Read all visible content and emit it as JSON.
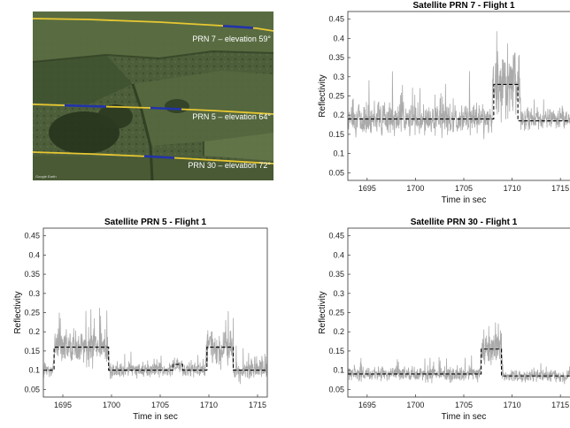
{
  "map_panel": {
    "labels": [
      "PRN 7 – elevation 59°",
      "PRN 5 – elevation 64°",
      "PRN 30 – elevation 72°"
    ],
    "credit": "Google Earth",
    "colors": {
      "track": "#e8c832",
      "segment": "#2233aa",
      "background": "#4a5a38"
    }
  },
  "chart_data": [
    {
      "type": "line",
      "title": "Satellite PRN 7 - Flight 1",
      "xlabel": "Time in sec",
      "ylabel": "Reflectivity",
      "xlim": [
        1693,
        1717
      ],
      "ylim": [
        0.03,
        0.47
      ],
      "xticks": [
        1695,
        1700,
        1705,
        1710,
        1715
      ],
      "yticks": [
        0.05,
        0.1,
        0.15,
        0.2,
        0.25,
        0.3,
        0.35,
        0.4,
        0.45
      ],
      "raw_color": "#aaaaaa",
      "raw_seed": 7,
      "noise": [
        [
          1693,
          0.19,
          0.06
        ],
        [
          1707.9,
          0.19,
          0.06
        ],
        [
          1708.0,
          0.28,
          0.12
        ],
        [
          1710.8,
          0.28,
          0.12
        ],
        [
          1710.9,
          0.19,
          0.04
        ],
        [
          1717,
          0.19,
          0.04
        ]
      ],
      "mean_steps": [
        [
          1693,
          0.19
        ],
        [
          1708.1,
          0.19
        ],
        [
          1708.1,
          0.28
        ],
        [
          1710.6,
          0.28
        ],
        [
          1710.6,
          0.185
        ],
        [
          1717,
          0.185
        ]
      ]
    },
    {
      "type": "line",
      "title": "Satellite PRN 5 - Flight 1",
      "xlabel": "Time in sec",
      "ylabel": "Reflectivity",
      "xlim": [
        1693,
        1716
      ],
      "ylim": [
        0.03,
        0.47
      ],
      "xticks": [
        1695,
        1700,
        1705,
        1710,
        1715
      ],
      "yticks": [
        0.05,
        0.1,
        0.15,
        0.2,
        0.25,
        0.3,
        0.35,
        0.4,
        0.45
      ],
      "raw_color": "#aaaaaa",
      "raw_seed": 5,
      "noise": [
        [
          1693,
          0.1,
          0.03
        ],
        [
          1694.0,
          0.1,
          0.03
        ],
        [
          1694.2,
          0.16,
          0.07
        ],
        [
          1699.6,
          0.16,
          0.07
        ],
        [
          1699.8,
          0.1,
          0.03
        ],
        [
          1706.2,
          0.1,
          0.03
        ],
        [
          1706.4,
          0.115,
          0.03
        ],
        [
          1707.2,
          0.115,
          0.03
        ],
        [
          1707.4,
          0.1,
          0.03
        ],
        [
          1709.6,
          0.1,
          0.03
        ],
        [
          1709.8,
          0.16,
          0.07
        ],
        [
          1712.4,
          0.16,
          0.07
        ],
        [
          1712.6,
          0.1,
          0.04
        ],
        [
          1716,
          0.1,
          0.04
        ]
      ],
      "mean_steps": [
        [
          1693,
          0.1
        ],
        [
          1694.1,
          0.1
        ],
        [
          1694.1,
          0.16
        ],
        [
          1699.7,
          0.16
        ],
        [
          1699.7,
          0.1
        ],
        [
          1706.3,
          0.1
        ],
        [
          1706.3,
          0.115
        ],
        [
          1707.3,
          0.115
        ],
        [
          1707.3,
          0.1
        ],
        [
          1709.8,
          0.1
        ],
        [
          1709.8,
          0.16
        ],
        [
          1712.5,
          0.16
        ],
        [
          1712.5,
          0.1
        ],
        [
          1716,
          0.1
        ]
      ]
    },
    {
      "type": "line",
      "title": "Satellite PRN 30 - Flight 1",
      "xlabel": "Time in sec",
      "ylabel": "Reflectivity",
      "xlim": [
        1693,
        1717
      ],
      "ylim": [
        0.03,
        0.47
      ],
      "xticks": [
        1695,
        1700,
        1705,
        1710,
        1715
      ],
      "yticks": [
        0.05,
        0.1,
        0.15,
        0.2,
        0.25,
        0.3,
        0.35,
        0.4,
        0.45
      ],
      "raw_color": "#aaaaaa",
      "raw_seed": 30,
      "noise": [
        [
          1693,
          0.09,
          0.03
        ],
        [
          1706.7,
          0.09,
          0.03
        ],
        [
          1706.8,
          0.155,
          0.07
        ],
        [
          1708.9,
          0.155,
          0.07
        ],
        [
          1709.0,
          0.085,
          0.025
        ],
        [
          1717,
          0.085,
          0.025
        ]
      ],
      "mean_steps": [
        [
          1693,
          0.09
        ],
        [
          1706.8,
          0.09
        ],
        [
          1706.8,
          0.155
        ],
        [
          1708.9,
          0.155
        ],
        [
          1708.9,
          0.085
        ],
        [
          1717,
          0.085
        ]
      ]
    }
  ]
}
